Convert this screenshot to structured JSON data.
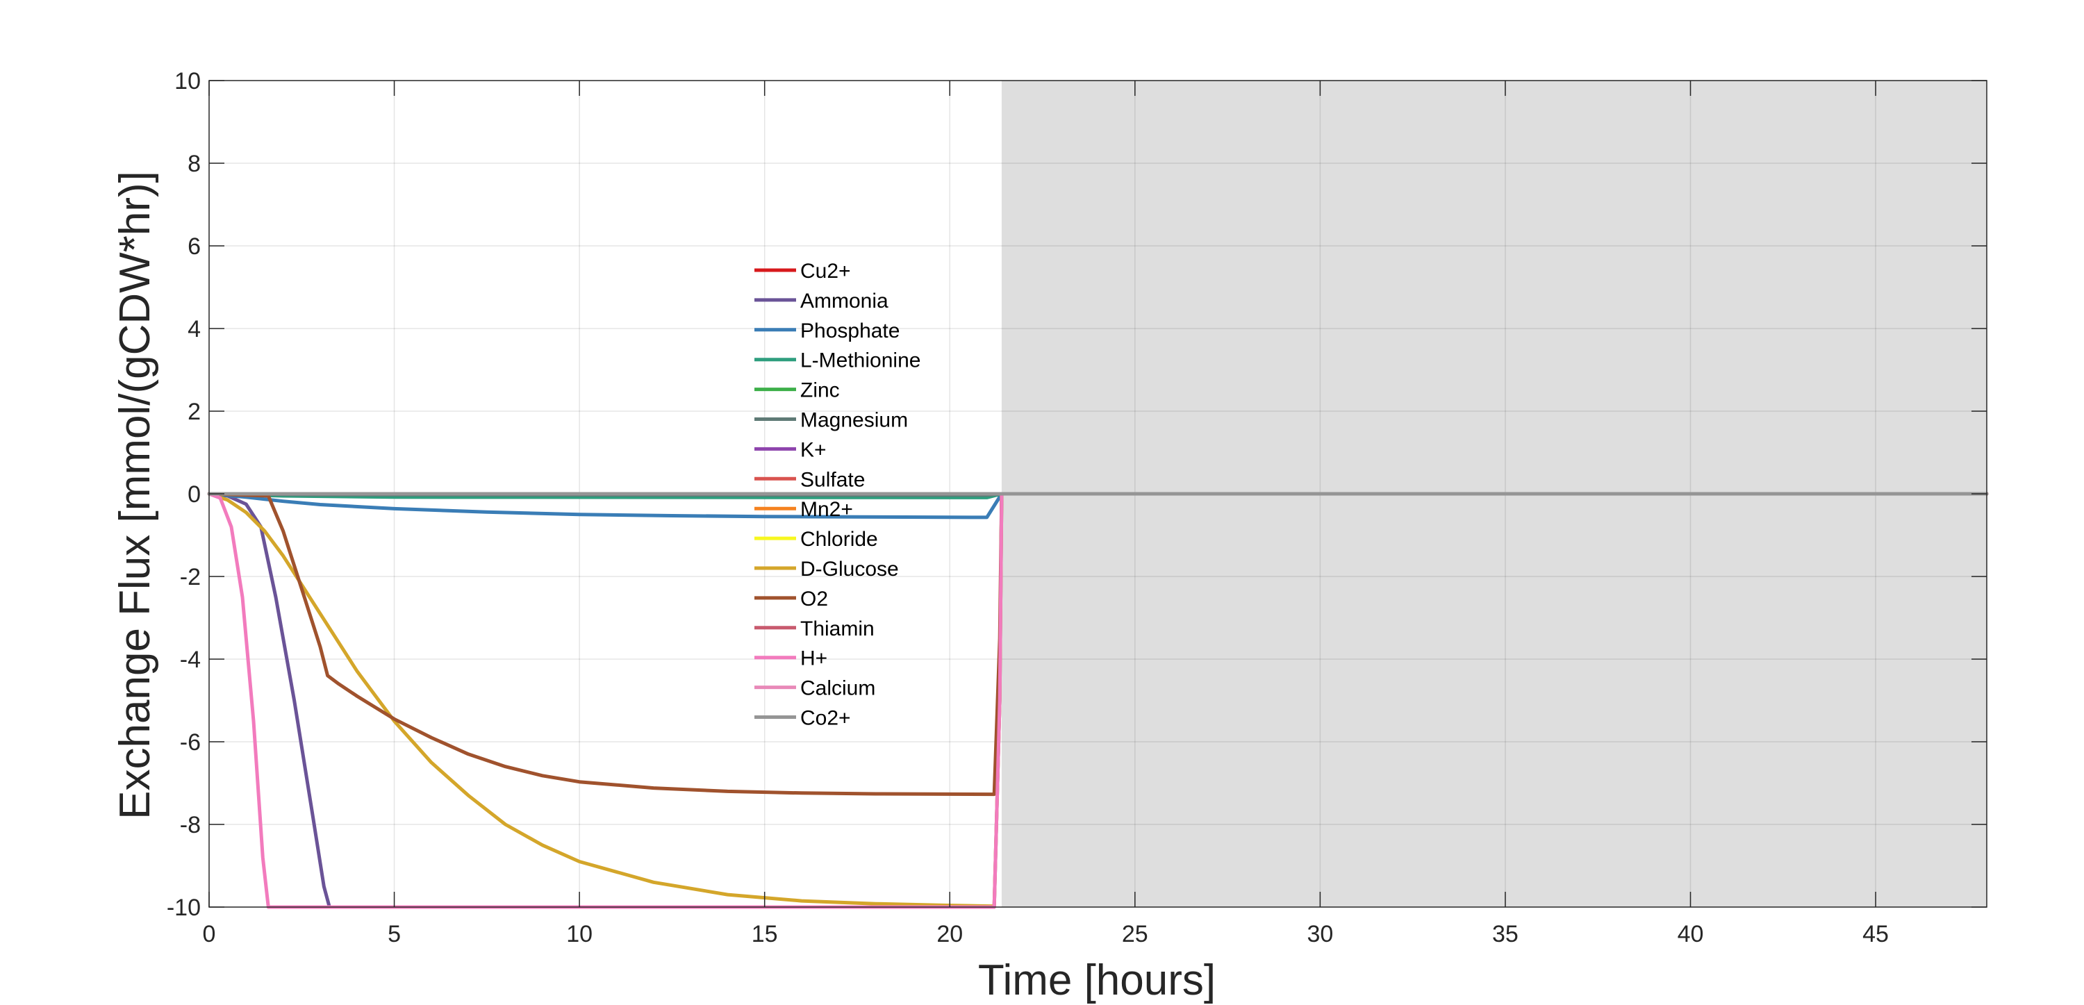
{
  "chart_data": {
    "type": "line",
    "title": "",
    "xlabel": "Time [hours]",
    "ylabel": "Exchange Flux [mmol/(gCDW*hr)]",
    "xlim": [
      0,
      48
    ],
    "ylim": [
      -10,
      10
    ],
    "xticks": [
      0,
      5,
      10,
      15,
      20,
      25,
      30,
      35,
      40,
      45
    ],
    "yticks": [
      -10,
      -8,
      -6,
      -4,
      -2,
      0,
      2,
      4,
      6,
      8,
      10
    ],
    "grid": true,
    "legend_position": "center",
    "shaded_region": {
      "x_start": 21.4,
      "x_end": 48,
      "color": "#dedede"
    },
    "series": [
      {
        "name": "Cu2+",
        "color": "#d7191c",
        "points": [
          [
            0,
            0
          ],
          [
            48,
            0
          ]
        ]
      },
      {
        "name": "Ammonia",
        "color": "#6a5397",
        "points": [
          [
            0,
            0
          ],
          [
            0.5,
            -0.05
          ],
          [
            1,
            -0.25
          ],
          [
            1.4,
            -0.8
          ],
          [
            1.8,
            -2.5
          ],
          [
            2.3,
            -5
          ],
          [
            2.8,
            -7.8
          ],
          [
            3.1,
            -9.5
          ],
          [
            3.25,
            -10
          ],
          [
            21.2,
            -10
          ],
          [
            21.35,
            -5
          ],
          [
            21.4,
            0
          ],
          [
            48,
            0
          ]
        ]
      },
      {
        "name": "Phosphate",
        "color": "#3a7db6",
        "points": [
          [
            0,
            0
          ],
          [
            1,
            -0.08
          ],
          [
            2,
            -0.18
          ],
          [
            3,
            -0.26
          ],
          [
            5,
            -0.36
          ],
          [
            7.5,
            -0.44
          ],
          [
            10,
            -0.5
          ],
          [
            12.5,
            -0.53
          ],
          [
            15,
            -0.55
          ],
          [
            17.5,
            -0.56
          ],
          [
            21,
            -0.57
          ],
          [
            21.4,
            0
          ],
          [
            48,
            0
          ]
        ]
      },
      {
        "name": "L-Methionine",
        "color": "#2e9e7e",
        "points": [
          [
            0,
            0
          ],
          [
            2,
            -0.05
          ],
          [
            5,
            -0.08
          ],
          [
            21,
            -0.09
          ],
          [
            21.4,
            0
          ],
          [
            48,
            0
          ]
        ]
      },
      {
        "name": "Zinc",
        "color": "#3daf4a",
        "points": [
          [
            0,
            0
          ],
          [
            48,
            0
          ]
        ]
      },
      {
        "name": "Magnesium",
        "color": "#5f7a76",
        "points": [
          [
            0,
            0
          ],
          [
            3,
            -0.02
          ],
          [
            21,
            -0.03
          ],
          [
            21.4,
            0
          ],
          [
            48,
            0
          ]
        ]
      },
      {
        "name": "K+",
        "color": "#8e44ad",
        "points": [
          [
            0,
            0
          ],
          [
            48,
            0
          ]
        ]
      },
      {
        "name": "Sulfate",
        "color": "#d9534f",
        "points": [
          [
            0,
            0
          ],
          [
            48,
            0
          ]
        ]
      },
      {
        "name": "Mn2+",
        "color": "#f58220",
        "points": [
          [
            0,
            0
          ],
          [
            48,
            0
          ]
        ]
      },
      {
        "name": "Chloride",
        "color": "#f7f720",
        "points": [
          [
            0,
            0
          ],
          [
            48,
            0
          ]
        ]
      },
      {
        "name": "D-Glucose",
        "color": "#d4a62a",
        "points": [
          [
            0,
            0
          ],
          [
            0.5,
            -0.15
          ],
          [
            1,
            -0.45
          ],
          [
            1.5,
            -0.9
          ],
          [
            2,
            -1.5
          ],
          [
            3,
            -2.9
          ],
          [
            4,
            -4.3
          ],
          [
            5,
            -5.5
          ],
          [
            6,
            -6.5
          ],
          [
            7,
            -7.3
          ],
          [
            8,
            -8
          ],
          [
            9,
            -8.5
          ],
          [
            10,
            -8.9
          ],
          [
            12,
            -9.4
          ],
          [
            14,
            -9.7
          ],
          [
            16,
            -9.85
          ],
          [
            18,
            -9.92
          ],
          [
            20,
            -9.96
          ],
          [
            21.2,
            -9.98
          ],
          [
            21.35,
            -5
          ],
          [
            21.4,
            0
          ],
          [
            48,
            0
          ]
        ]
      },
      {
        "name": "O2",
        "color": "#a0522d",
        "points": [
          [
            0,
            0
          ],
          [
            1.6,
            -0.05
          ],
          [
            2,
            -0.9
          ],
          [
            2.5,
            -2.3
          ],
          [
            3,
            -3.7
          ],
          [
            3.2,
            -4.4
          ],
          [
            3.5,
            -4.6
          ],
          [
            4,
            -4.9
          ],
          [
            5,
            -5.45
          ],
          [
            6,
            -5.9
          ],
          [
            7,
            -6.3
          ],
          [
            8,
            -6.6
          ],
          [
            9,
            -6.82
          ],
          [
            10,
            -6.97
          ],
          [
            12,
            -7.12
          ],
          [
            14,
            -7.2
          ],
          [
            16,
            -7.24
          ],
          [
            18,
            -7.26
          ],
          [
            21.2,
            -7.27
          ],
          [
            21.35,
            -3.5
          ],
          [
            21.4,
            0
          ],
          [
            48,
            0
          ]
        ]
      },
      {
        "name": "Thiamin",
        "color": "#c85a6e",
        "points": [
          [
            0,
            0
          ],
          [
            48,
            0
          ]
        ]
      },
      {
        "name": "H+",
        "color": "#f27bbd",
        "points": [
          [
            0,
            0
          ],
          [
            0.3,
            -0.1
          ],
          [
            0.6,
            -0.8
          ],
          [
            0.9,
            -2.5
          ],
          [
            1.2,
            -5.5
          ],
          [
            1.45,
            -8.8
          ],
          [
            1.6,
            -10
          ],
          [
            21.2,
            -10
          ],
          [
            21.35,
            -5
          ],
          [
            21.4,
            0
          ],
          [
            48,
            0
          ]
        ]
      },
      {
        "name": "Calcium",
        "color": "#e889b8",
        "points": [
          [
            0,
            0
          ],
          [
            48,
            0
          ]
        ]
      },
      {
        "name": "Co2+",
        "color": "#959595",
        "points": [
          [
            0,
            0
          ],
          [
            48,
            0
          ]
        ]
      }
    ]
  }
}
